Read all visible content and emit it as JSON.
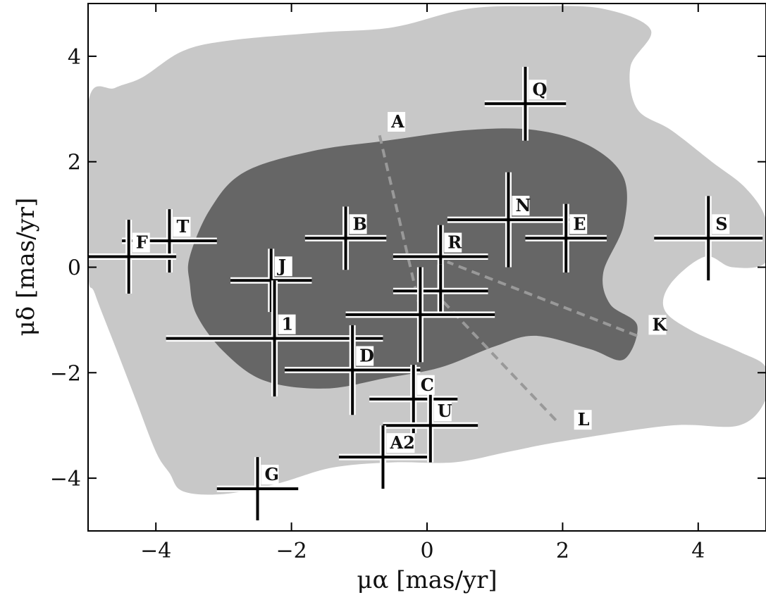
{
  "chart_data": {
    "type": "scatter",
    "title": "",
    "xlabel": "μα [mas/yr]",
    "ylabel": "μδ [mas/yr]",
    "xlim": [
      -5,
      5
    ],
    "ylim": [
      -5,
      5
    ],
    "xticks": [
      -4,
      -2,
      0,
      2,
      4
    ],
    "yticks": [
      -4,
      -2,
      0,
      2,
      4
    ],
    "xtick_labels": [
      "−4",
      "−2",
      "0",
      "2",
      "4"
    ],
    "ytick_labels": [
      "−4",
      "−2",
      "0",
      "2",
      "4"
    ],
    "grid": false,
    "colors": {
      "outer_region": "#c8c8c8",
      "inner_region": "#666666",
      "error_bar": "#000000",
      "error_bar_halo": "#ffffff",
      "track_line": "#999999"
    },
    "outer_region": [
      [
        -5.0,
        3.1
      ],
      [
        -4.6,
        3.4
      ],
      [
        -4.2,
        3.6
      ],
      [
        -3.6,
        4.1
      ],
      [
        -2.9,
        4.3
      ],
      [
        -1.6,
        4.45
      ],
      [
        -0.5,
        4.55
      ],
      [
        0.6,
        4.9
      ],
      [
        1.6,
        4.95
      ],
      [
        2.6,
        4.9
      ],
      [
        3.3,
        4.5
      ],
      [
        3.0,
        3.8
      ],
      [
        3.1,
        3.0
      ],
      [
        3.6,
        2.6
      ],
      [
        4.2,
        2.0
      ],
      [
        4.7,
        1.5
      ],
      [
        5.0,
        0.9
      ],
      [
        5.0,
        0.1
      ],
      [
        4.5,
        0.0
      ],
      [
        4.1,
        0.2
      ],
      [
        3.6,
        -0.3
      ],
      [
        3.5,
        -0.8
      ],
      [
        3.9,
        -1.2
      ],
      [
        4.6,
        -1.6
      ],
      [
        5.0,
        -1.9
      ],
      [
        5.0,
        -2.5
      ],
      [
        4.6,
        -3.0
      ],
      [
        3.6,
        -3.0
      ],
      [
        2.0,
        -3.3
      ],
      [
        1.2,
        -3.5
      ],
      [
        0.4,
        -3.7
      ],
      [
        -0.5,
        -3.7
      ],
      [
        -1.4,
        -3.8
      ],
      [
        -2.2,
        -4.1
      ],
      [
        -3.0,
        -4.3
      ],
      [
        -3.6,
        -4.25
      ],
      [
        -3.8,
        -3.9
      ],
      [
        -4.0,
        -3.5
      ],
      [
        -4.3,
        -2.5
      ],
      [
        -4.6,
        -1.5
      ],
      [
        -4.9,
        -0.5
      ],
      [
        -5.0,
        0.0
      ]
    ],
    "inner_region": [
      [
        -3.5,
        0.2
      ],
      [
        -3.2,
        1.1
      ],
      [
        -2.7,
        1.8
      ],
      [
        -1.7,
        2.2
      ],
      [
        -0.6,
        2.4
      ],
      [
        0.6,
        2.6
      ],
      [
        1.6,
        2.6
      ],
      [
        2.4,
        2.3
      ],
      [
        2.9,
        1.7
      ],
      [
        2.9,
        0.8
      ],
      [
        2.6,
        -0.1
      ],
      [
        2.7,
        -0.7
      ],
      [
        3.1,
        -1.1
      ],
      [
        2.9,
        -1.75
      ],
      [
        2.4,
        -1.55
      ],
      [
        1.6,
        -1.3
      ],
      [
        1.0,
        -1.5
      ],
      [
        0.2,
        -1.9
      ],
      [
        -0.6,
        -2.1
      ],
      [
        -1.5,
        -2.3
      ],
      [
        -2.4,
        -2.15
      ],
      [
        -3.0,
        -1.6
      ],
      [
        -3.4,
        -0.9
      ],
      [
        -3.5,
        -0.3
      ]
    ],
    "tracks": [
      {
        "from": "A",
        "x": [
          -0.7,
          -0.1
        ],
        "y": [
          2.5,
          -0.8
        ]
      },
      {
        "from": "K",
        "x": [
          3.1,
          0.3
        ],
        "y": [
          -1.3,
          0.1
        ]
      },
      {
        "from": "L",
        "x": [
          1.9,
          0.2
        ],
        "y": [
          -2.9,
          -0.6
        ]
      }
    ],
    "track_labels": [
      {
        "text": "A",
        "x": -0.55,
        "y": 2.65
      },
      {
        "text": "K",
        "x": 3.3,
        "y": -1.2
      },
      {
        "text": "L",
        "x": 2.2,
        "y": -3.0
      }
    ],
    "points": [
      {
        "label": "Q",
        "x": 1.45,
        "y": 3.1,
        "xerr": 0.6,
        "yerr": 0.7
      },
      {
        "label": "N",
        "x": 1.2,
        "y": 0.9,
        "xerr": 0.9,
        "yerr": 0.9
      },
      {
        "label": "E",
        "x": 2.05,
        "y": 0.55,
        "xerr": 0.6,
        "yerr": 0.65
      },
      {
        "label": "S",
        "x": 4.15,
        "y": 0.55,
        "xerr": 0.8,
        "yerr": 0.8
      },
      {
        "label": "B",
        "x": -1.2,
        "y": 0.55,
        "xerr": 0.6,
        "yerr": 0.6
      },
      {
        "label": "R",
        "x": 0.2,
        "y": 0.2,
        "xerr": 0.7,
        "yerr": 0.6
      },
      {
        "label": "T",
        "x": -3.8,
        "y": 0.5,
        "xerr": 0.7,
        "yerr": 0.6
      },
      {
        "label": "F",
        "x": -4.4,
        "y": 0.2,
        "xerr": 0.7,
        "yerr": 0.7
      },
      {
        "label": "J",
        "x": -2.3,
        "y": -0.25,
        "xerr": 0.6,
        "yerr": 0.6
      },
      {
        "label": "",
        "x": 0.2,
        "y": -0.45,
        "xerr": 0.7,
        "yerr": 0.5
      },
      {
        "label": "",
        "x": -0.1,
        "y": -0.9,
        "xerr": 1.1,
        "yerr": 0.9
      },
      {
        "label": "1",
        "x": -2.25,
        "y": -1.35,
        "xerr": 1.6,
        "yerr": 1.1
      },
      {
        "label": "D",
        "x": -1.1,
        "y": -1.95,
        "xerr": 1.0,
        "yerr": 0.85
      },
      {
        "label": "C",
        "x": -0.2,
        "y": -2.5,
        "xerr": 0.65,
        "yerr": 0.65
      },
      {
        "label": "U",
        "x": 0.05,
        "y": -3.0,
        "xerr": 0.7,
        "yerr": 0.7
      },
      {
        "label": "A2",
        "x": -0.65,
        "y": -3.6,
        "xerr": 0.65,
        "yerr": 0.6
      },
      {
        "label": "G",
        "x": -2.5,
        "y": -4.2,
        "xerr": 0.6,
        "yerr": 0.6
      }
    ]
  }
}
